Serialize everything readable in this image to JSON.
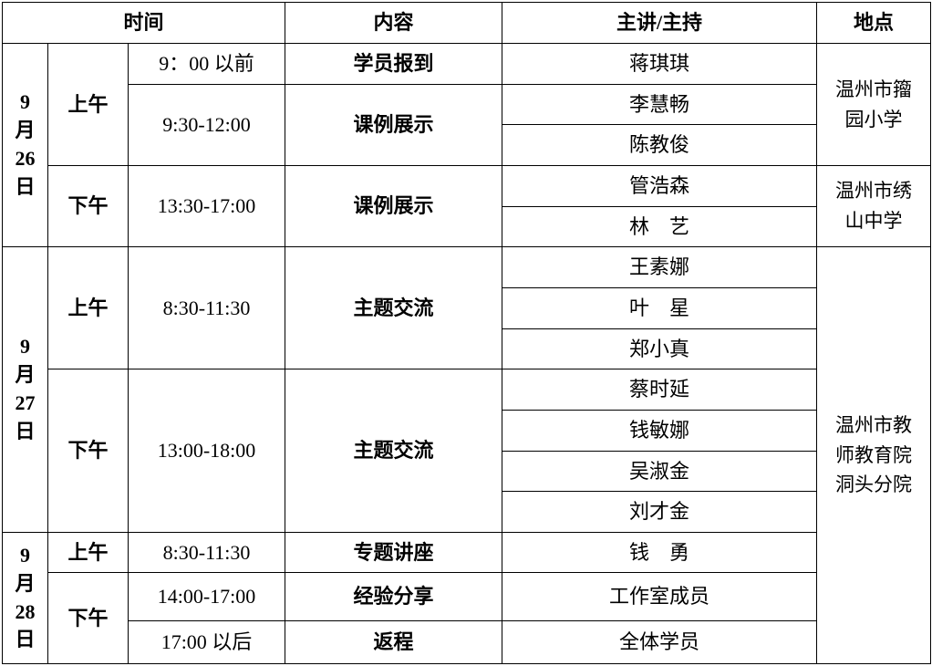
{
  "headers": {
    "time": "时间",
    "content": "内容",
    "speaker": "主讲/主持",
    "location": "地点"
  },
  "days": [
    {
      "date": [
        "9",
        "月",
        "26",
        "日"
      ]
    },
    {
      "date": [
        "9",
        "月",
        "27",
        "日"
      ]
    },
    {
      "date": [
        "9",
        "月",
        "28",
        "日"
      ]
    }
  ],
  "periods": [
    "上午",
    "下午",
    "上午",
    "下午",
    "上午",
    "下午"
  ],
  "sessions": [
    {
      "time": "9：00 以前",
      "content": "学员报到"
    },
    {
      "time": "9:30-12:00",
      "content": "课例展示"
    },
    {
      "time": "13:30-17:00",
      "content": "课例展示"
    },
    {
      "time": "8:30-11:30",
      "content": "主题交流"
    },
    {
      "time": "13:00-18:00",
      "content": "主题交流"
    },
    {
      "time": "8:30-11:30",
      "content": "专题讲座"
    },
    {
      "time": "14:00-17:00",
      "content": "经验分享"
    },
    {
      "time": "17:00 以后",
      "content": "返程"
    }
  ],
  "speakers": [
    "蒋琪琪",
    "李慧畅",
    "陈教俊",
    "管浩森",
    "林　艺",
    "王素娜",
    "叶　星",
    "郑小真",
    "蔡时延",
    "钱敏娜",
    "吴淑金",
    "刘才金",
    "钱　勇",
    "工作室成员",
    "全体学员"
  ],
  "locations": [
    [
      "温州市籀",
      "园小学"
    ],
    [
      "温州市绣",
      "山中学"
    ],
    [
      "温州市教",
      "师教育院",
      "洞头分院"
    ]
  ]
}
